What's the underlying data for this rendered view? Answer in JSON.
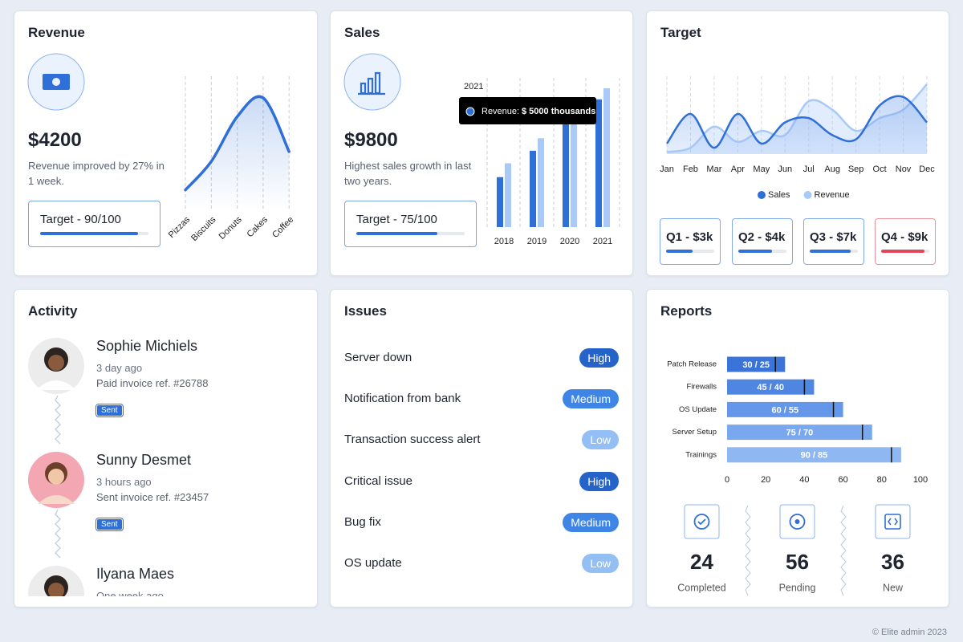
{
  "cards": {
    "revenue": {
      "title": "Revenue",
      "amount": "$4200",
      "note": "Revenue improved by 27% in 1 week.",
      "target": {
        "label": "Target - 90/100",
        "value": 90,
        "max": 100
      }
    },
    "sales": {
      "title": "Sales",
      "amount": "$9800",
      "note": "Highest sales growth in last two years.",
      "target": {
        "label": "Target - 75/100",
        "value": 75,
        "max": 100
      }
    },
    "target": {
      "title": "Target",
      "quarters": [
        {
          "label": "Q1 - $3k",
          "progress": 55,
          "color": "#2f6fd8"
        },
        {
          "label": "Q2 - $4k",
          "progress": 70,
          "color": "#2f6fd8"
        },
        {
          "label": "Q3 - $7k",
          "progress": 85,
          "color": "#2f6fd8"
        },
        {
          "label": "Q4 - $9k",
          "progress": 90,
          "color": "#e0485a"
        }
      ]
    },
    "activity": {
      "title": "Activity",
      "items": [
        {
          "name": "Sophie Michiels",
          "time": "3 day ago",
          "note": "Paid invoice ref. #26788",
          "status": "Sent"
        },
        {
          "name": "Sunny Desmet",
          "time": "3 hours ago",
          "note": "Sent invoice ref. #23457",
          "status": "Sent"
        },
        {
          "name": "Ilyana Maes",
          "time": "One week ago"
        }
      ]
    },
    "issues": {
      "title": "Issues",
      "items": [
        {
          "label": "Server down",
          "priority": "High",
          "color": "#2563c9"
        },
        {
          "label": "Notification from bank",
          "priority": "Medium",
          "color": "#3f85e6"
        },
        {
          "label": "Transaction success alert",
          "priority": "Low",
          "color": "#93bff5"
        },
        {
          "label": "Critical issue",
          "priority": "High",
          "color": "#2563c9"
        },
        {
          "label": "Bug fix",
          "priority": "Medium",
          "color": "#3f85e6"
        },
        {
          "label": "OS update",
          "priority": "Low",
          "color": "#93bff5"
        }
      ]
    },
    "reports": {
      "title": "Reports",
      "stats": [
        {
          "value": 24,
          "label": "Completed"
        },
        {
          "value": 56,
          "label": "Pending"
        },
        {
          "value": 36,
          "label": "New"
        }
      ]
    }
  },
  "chart_data": [
    {
      "type": "line",
      "categories": [
        "Pizzas",
        "Biscuits",
        "Donuts",
        "Cakes",
        "Coffee"
      ],
      "values": [
        25,
        60,
        115,
        138,
        72
      ],
      "color": "#2f6fd8"
    },
    {
      "type": "bar",
      "categories": [
        "2018",
        "2019",
        "2020",
        "2021"
      ],
      "series": [
        {
          "name": "Sales",
          "color": "#2f6fd8",
          "values": [
            1800,
            2750,
            3700,
            4600
          ]
        },
        {
          "name": "Revenue",
          "color": "#a9c9f7",
          "values": [
            2300,
            3200,
            4150,
            5000
          ]
        }
      ],
      "tooltip": {
        "category": "2021",
        "label": "Revenue:",
        "value_label": "$ 5000 thousands"
      }
    },
    {
      "type": "area",
      "categories": [
        "Jan",
        "Feb",
        "Mar",
        "Apr",
        "May",
        "Jun",
        "Jul",
        "Aug",
        "Sep",
        "Oct",
        "Nov",
        "Dec"
      ],
      "series": [
        {
          "name": "Sales",
          "color": "#2f6fd8",
          "values": [
            20,
            55,
            15,
            55,
            20,
            45,
            50,
            30,
            25,
            65,
            75,
            45
          ]
        },
        {
          "name": "Revenue",
          "color": "#a9c9f7",
          "values": [
            10,
            15,
            40,
            22,
            35,
            30,
            70,
            60,
            35,
            50,
            60,
            90
          ]
        }
      ]
    },
    {
      "type": "bullet",
      "categories": [
        "Patch Release",
        "Firewalls",
        "OS Update",
        "Server Setup",
        "Trainings"
      ],
      "values": [
        30,
        45,
        60,
        75,
        90
      ],
      "targets": [
        25,
        40,
        55,
        70,
        85
      ],
      "value_labels": [
        "30 / 25",
        "45 / 40",
        "60 / 55",
        "75 / 70",
        "90 / 85"
      ],
      "colors": [
        "#3a74d9",
        "#4f86e2",
        "#6497ea",
        "#7aa8ef",
        "#8fb8f3"
      ],
      "xlim": [
        0,
        100
      ],
      "xticks": [
        0,
        20,
        40,
        60,
        80,
        100
      ]
    }
  ],
  "footer": "© Elite admin 2023"
}
